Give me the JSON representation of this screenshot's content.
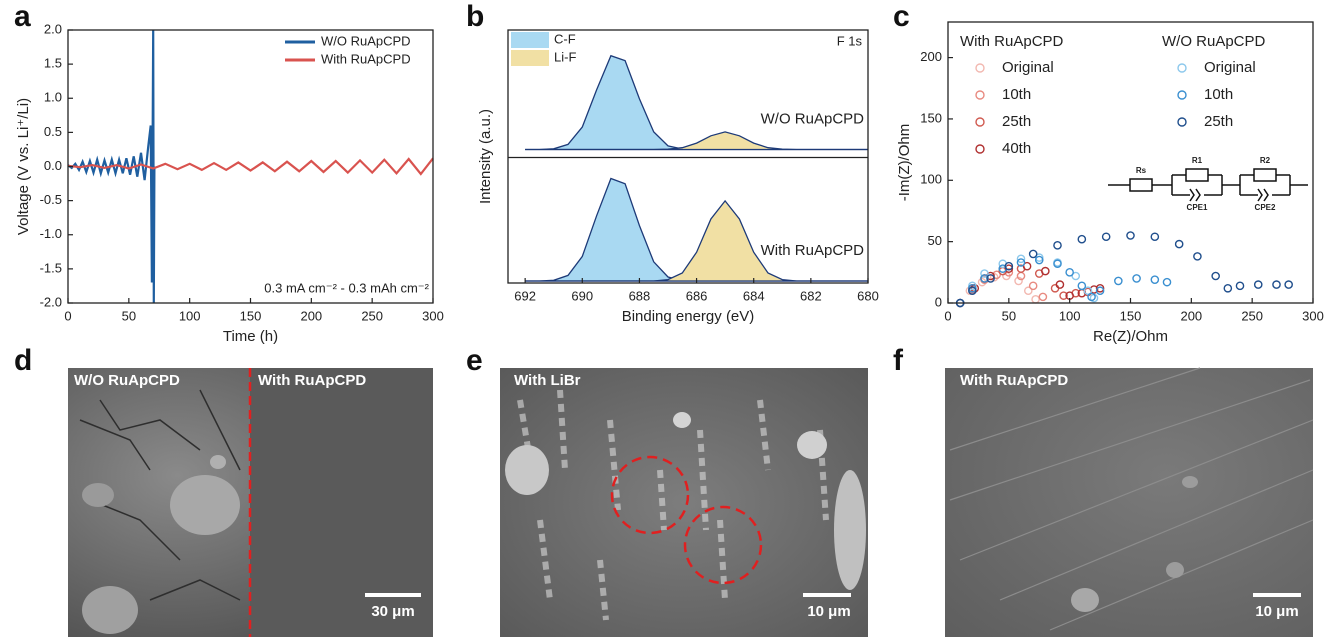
{
  "chart_data": [
    {
      "type": "line",
      "panel": "a",
      "xlabel": "Time (h)",
      "ylabel": "Voltage (V vs. Li⁺/Li)",
      "annotation": "0.3 mA cm⁻² - 0.3 mAh cm⁻²",
      "xlim": [
        0,
        300
      ],
      "xticks": [
        0,
        50,
        100,
        150,
        200,
        250,
        300
      ],
      "ylim": [
        -2,
        2
      ],
      "yticks": [
        {
          "value": -2,
          "label": "-2.0"
        },
        {
          "value": -1.5,
          "label": "-1.5"
        },
        {
          "value": -1,
          "label": "-1.0"
        },
        {
          "value": -0.5,
          "label": "-0.5"
        },
        {
          "value": 0,
          "label": "0.0"
        },
        {
          "value": 0.5,
          "label": "0.5"
        },
        {
          "value": 1,
          "label": "1.0"
        },
        {
          "value": 1.5,
          "label": "1.5"
        },
        {
          "value": 2,
          "label": "2.0"
        }
      ],
      "series": [
        {
          "name": "W/O RuApCPD",
          "color": "#1f5fa0",
          "x": [
            0,
            3,
            6,
            9,
            12,
            15,
            18,
            21,
            24,
            27,
            30,
            33,
            36,
            39,
            42,
            45,
            48,
            51,
            54,
            57,
            60,
            63,
            66,
            68,
            69,
            70,
            70.5,
            71
          ],
          "values": [
            0.02,
            -0.02,
            0.04,
            -0.05,
            0.07,
            -0.08,
            0.08,
            -0.09,
            0.1,
            -0.1,
            0.09,
            -0.09,
            0.1,
            -0.1,
            0.1,
            -0.1,
            0.12,
            -0.12,
            0.15,
            -0.15,
            0.2,
            -0.2,
            0.3,
            0.6,
            -1.7,
            2.0,
            -2.0,
            0
          ]
        },
        {
          "name": "With RuApCPD",
          "color": "#d9534f",
          "x": [
            0,
            10,
            20,
            30,
            40,
            50,
            60,
            70,
            80,
            90,
            100,
            110,
            120,
            130,
            140,
            150,
            160,
            170,
            180,
            190,
            200,
            210,
            220,
            230,
            240,
            250,
            260,
            270,
            280,
            290,
            300
          ],
          "values": [
            0.01,
            -0.01,
            0.02,
            -0.02,
            0.02,
            -0.03,
            0.03,
            -0.03,
            0.04,
            -0.04,
            0.04,
            -0.05,
            0.05,
            -0.05,
            0.06,
            -0.06,
            0.06,
            -0.07,
            0.07,
            -0.07,
            0.08,
            -0.08,
            0.08,
            -0.09,
            0.09,
            -0.09,
            0.1,
            -0.1,
            0.11,
            -0.11,
            0.12
          ]
        }
      ]
    },
    {
      "type": "area",
      "panel": "b",
      "xlabel": "Binding energy (eV)",
      "ylabel": "Intensity (a.u.)",
      "annotation": "F 1s",
      "xlim": [
        692.6,
        680
      ],
      "xticks": [
        692,
        690,
        688,
        686,
        684,
        682,
        680
      ],
      "ylim": [
        0,
        1.1
      ],
      "x": [
        692,
        691.5,
        691,
        690.5,
        690,
        689.5,
        689,
        688.5,
        688,
        687.5,
        687,
        686.5,
        686,
        685.5,
        685,
        684.5,
        684,
        683.5,
        683,
        682.5,
        682,
        681.5,
        681,
        680.5,
        680
      ],
      "panels": [
        {
          "label": "W/O RuApCPD",
          "series": [
            {
              "name": "C-F",
              "color": "#a9d9f2",
              "values": [
                0,
                0,
                0.007,
                0.052,
                0.23,
                0.61,
                0.96,
                0.91,
                0.52,
                0.18,
                0.037,
                0.005,
                0,
                0,
                0,
                0,
                0,
                0,
                0,
                0,
                0,
                0,
                0,
                0,
                0
              ]
            },
            {
              "name": "Li-F",
              "color": "#f1e0a4",
              "values": [
                0,
                0,
                0,
                0,
                0,
                0,
                0,
                0,
                0,
                0,
                0.003,
                0.018,
                0.065,
                0.14,
                0.18,
                0.14,
                0.065,
                0.018,
                0.003,
                0,
                0,
                0,
                0,
                0,
                0
              ]
            }
          ]
        },
        {
          "label": "With RuApCPD",
          "series": [
            {
              "color": "#a9d9f2",
              "values": [
                0,
                0,
                0.007,
                0.052,
                0.23,
                0.61,
                0.96,
                0.91,
                0.52,
                0.18,
                0.037,
                0.005,
                0,
                0,
                0,
                0,
                0,
                0,
                0,
                0,
                0,
                0,
                0,
                0,
                0
              ]
            },
            {
              "color": "#f1e0a4",
              "values": [
                0,
                0,
                0,
                0,
                0,
                0,
                0,
                0,
                0,
                0,
                0.013,
                0.075,
                0.27,
                0.58,
                0.75,
                0.58,
                0.27,
                0.075,
                0.013,
                0,
                0,
                0,
                0,
                0,
                0
              ]
            }
          ]
        }
      ]
    },
    {
      "type": "scatter",
      "panel": "c",
      "xlabel": "Re(Z)/Ohm",
      "ylabel": "-Im(Z)/Ohm",
      "xlim": [
        0,
        300
      ],
      "xticks": [
        0,
        50,
        100,
        150,
        200,
        250,
        300
      ],
      "ylim": [
        0,
        229
      ],
      "yticks": [
        0,
        50,
        100,
        150,
        200
      ],
      "inset_labels": [
        "Rs",
        "R1",
        "R2",
        "CPE1",
        "CPE2"
      ],
      "groups": [
        {
          "title": "With RuApCPD",
          "color": "#c84a45",
          "series": [
            {
              "name": "Original",
              "color": "#f2b8b0",
              "x": [
                10,
                18,
                28,
                38,
                48,
                58,
                66,
                72
              ],
              "values": [
                0,
                10,
                17,
                21,
                22,
                18,
                10,
                3
              ]
            },
            {
              "name": "10th",
              "color": "#e88a80",
              "x": [
                10,
                20,
                30,
                40,
                50,
                60,
                70,
                78
              ],
              "values": [
                0,
                11,
                19,
                23,
                25,
                22,
                14,
                5
              ]
            },
            {
              "name": "25th",
              "color": "#d05a50",
              "x": [
                10,
                20,
                30,
                45,
                60,
                75,
                88,
                95,
                105,
                115
              ],
              "values": [
                0,
                12,
                20,
                26,
                28,
                24,
                12,
                6,
                8,
                9
              ]
            },
            {
              "name": "40th",
              "color": "#b03030",
              "x": [
                10,
                22,
                35,
                50,
                65,
                80,
                92,
                100,
                110,
                120,
                125
              ],
              "values": [
                0,
                12,
                22,
                28,
                30,
                26,
                15,
                6,
                8,
                11,
                12
              ]
            }
          ]
        },
        {
          "title": "W/O RuApCPD",
          "color": "#2b62a8",
          "series": [
            {
              "name": "Original",
              "color": "#8cc8ec",
              "x": [
                10,
                20,
                30,
                45,
                60,
                75,
                90,
                105,
                115,
                120
              ],
              "values": [
                0,
                14,
                24,
                32,
                36,
                37,
                33,
                22,
                10,
                4
              ]
            },
            {
              "name": "10th",
              "color": "#3a8fd0",
              "x": [
                10,
                20,
                30,
                45,
                60,
                75,
                90,
                100,
                110,
                118,
                125,
                140,
                155,
                170,
                180
              ],
              "values": [
                0,
                12,
                20,
                28,
                33,
                35,
                32,
                25,
                14,
                5,
                10,
                18,
                20,
                19,
                17
              ]
            },
            {
              "name": "25th",
              "color": "#1f4e8c",
              "x": [
                10,
                20,
                35,
                50,
                70,
                90,
                110,
                130,
                150,
                170,
                190,
                205,
                220,
                230,
                240,
                255,
                270,
                280
              ],
              "values": [
                0,
                10,
                20,
                30,
                40,
                47,
                52,
                54,
                55,
                54,
                48,
                38,
                22,
                12,
                14,
                15,
                15,
                15
              ]
            }
          ]
        }
      ]
    }
  ],
  "images": [
    {
      "panel": "d",
      "labels": [
        "W/O RuApCPD",
        "With RuApCPD"
      ],
      "scale_bar": "30 μm"
    },
    {
      "panel": "e",
      "labels": [
        "With LiBr"
      ],
      "scale_bar": "10 μm"
    },
    {
      "panel": "f",
      "labels": [
        "With RuApCPD"
      ],
      "scale_bar": "10 μm"
    }
  ]
}
